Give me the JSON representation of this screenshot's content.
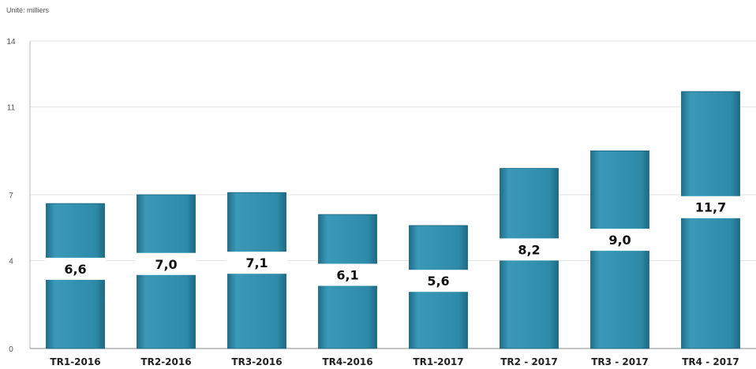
{
  "unit_label": "Unité: milliers",
  "chart_data": {
    "type": "bar",
    "categories": [
      "TR1-2016",
      "TR2-2016",
      "TR3-2016",
      "TR4-2016",
      "TR1-2017",
      "TR2 - 2017",
      "TR3 - 2017",
      "TR4 - 2017"
    ],
    "values": [
      6.6,
      7.0,
      7.1,
      6.1,
      5.6,
      8.2,
      9.0,
      11.7
    ],
    "data_labels": [
      "6,6",
      "7,0",
      "7,1",
      "6,1",
      "5,6",
      "8,2",
      "9,0",
      "11,7"
    ],
    "ytick_labels": [
      "0",
      "4",
      "7",
      "11",
      "14"
    ],
    "ylim": [
      0,
      14
    ],
    "grid": true,
    "bar_color": "#2e8aa8",
    "title": "",
    "xlabel": "",
    "ylabel": ""
  }
}
